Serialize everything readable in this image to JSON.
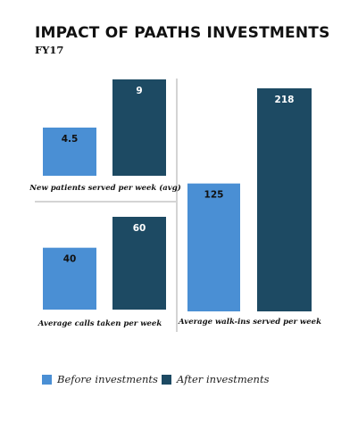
{
  "title": "IMPACT OF PAATHS INVESTMENTS",
  "subtitle": "FY17",
  "colors": {
    "before": "#4a8fd4",
    "after": "#1d4a63",
    "divider": "#aaaaaa"
  },
  "legend": {
    "before": "Before investments",
    "after": "After investments"
  },
  "chart_data": [
    {
      "type": "bar",
      "categories": [
        "Before investments",
        "After investments"
      ],
      "values": [
        4.5,
        9
      ],
      "xlabel": "New patients served per week (avg)",
      "ylim": [
        0,
        9
      ]
    },
    {
      "type": "bar",
      "categories": [
        "Before investments",
        "After investments"
      ],
      "values": [
        40,
        60
      ],
      "xlabel": "Average calls taken per week",
      "ylim": [
        0,
        60
      ]
    },
    {
      "type": "bar",
      "categories": [
        "Before investments",
        "After investments"
      ],
      "values": [
        125,
        218
      ],
      "xlabel": "Average walk-ins served per week",
      "ylim": [
        0,
        218
      ]
    }
  ]
}
